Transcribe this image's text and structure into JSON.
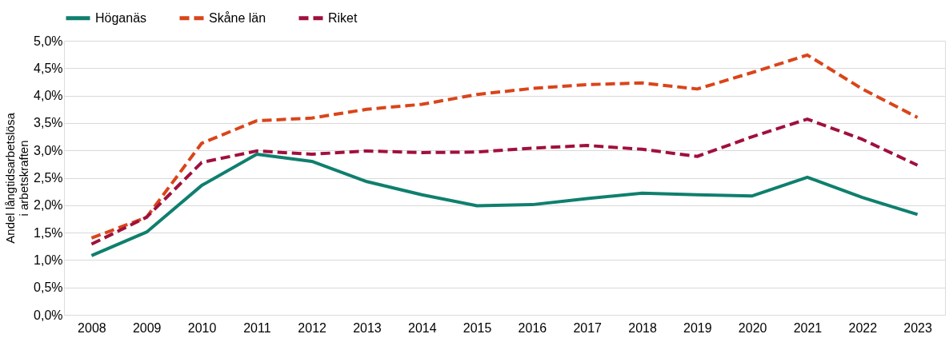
{
  "chart_data": {
    "type": "line",
    "ylabel": "Andel långtidsarbetslösa i arbetskraften",
    "categories": [
      "2008",
      "2009",
      "2010",
      "2011",
      "2012",
      "2013",
      "2014",
      "2015",
      "2016",
      "2017",
      "2018",
      "2019",
      "2020",
      "2021",
      "2022",
      "2023"
    ],
    "series": [
      {
        "name": "Höganäs",
        "color": "#0f7f6e",
        "line_style": "solid",
        "values": [
          1.08,
          1.51,
          2.36,
          2.93,
          2.8,
          2.43,
          2.19,
          1.99,
          2.01,
          2.12,
          2.22,
          2.19,
          2.17,
          2.51,
          2.14,
          1.83
        ]
      },
      {
        "name": "Skåne län",
        "color": "#d9451a",
        "line_style": "dashed",
        "values": [
          1.4,
          1.78,
          3.13,
          3.54,
          3.59,
          3.75,
          3.84,
          4.02,
          4.13,
          4.2,
          4.23,
          4.12,
          4.42,
          4.74,
          4.12,
          3.6
        ]
      },
      {
        "name": "Riket",
        "color": "#a0103d",
        "line_style": "dashed",
        "values": [
          1.29,
          1.78,
          2.78,
          2.99,
          2.93,
          2.99,
          2.96,
          2.97,
          3.04,
          3.09,
          3.02,
          2.89,
          3.25,
          3.57,
          3.2,
          2.73
        ]
      }
    ],
    "ylim": [
      0,
      5
    ],
    "yticks": [
      {
        "value": 0,
        "label": "0,0%"
      },
      {
        "value": 0.5,
        "label": "0,5%"
      },
      {
        "value": 1,
        "label": "1,0%"
      },
      {
        "value": 1.5,
        "label": "1,5%"
      },
      {
        "value": 2,
        "label": "2,0%"
      },
      {
        "value": 2.5,
        "label": "2,5%"
      },
      {
        "value": 3,
        "label": "3,0%"
      },
      {
        "value": 3.5,
        "label": "3,5%"
      },
      {
        "value": 4,
        "label": "4,0%"
      },
      {
        "value": 4.5,
        "label": "4,5%"
      },
      {
        "value": 5,
        "label": "5,0%"
      }
    ],
    "grid": "y",
    "legend": "top",
    "marker": "none"
  }
}
